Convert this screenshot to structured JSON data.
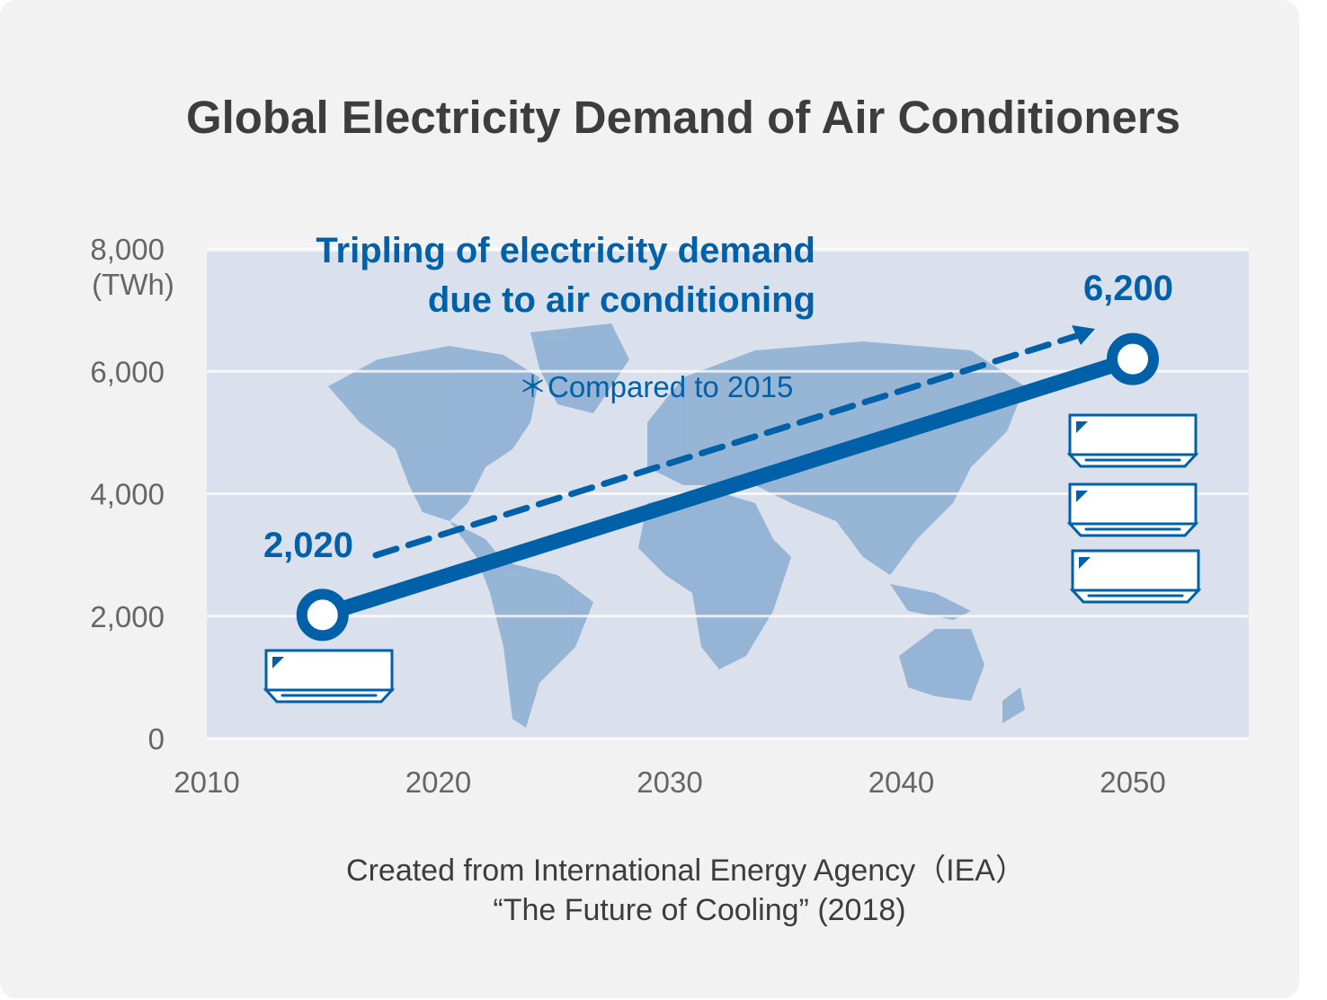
{
  "chart_data": {
    "type": "line",
    "title": "Global Electricity Demand of Air Conditioners",
    "ylabel": "(TWh)",
    "xlim": [
      2010,
      2055
    ],
    "ylim": [
      0,
      8000
    ],
    "x_ticks": [
      "2010",
      "2020",
      "2030",
      "2040",
      "2050"
    ],
    "y_ticks": [
      "0",
      "2,000",
      "4,000",
      "6,000",
      "8,000"
    ],
    "grid": "horizontal",
    "series": [
      {
        "x": [
          2015,
          2050
        ],
        "y": [
          2020,
          6200
        ]
      }
    ],
    "data_labels": [
      "2,020",
      "6,200"
    ],
    "annotation_lines": [
      "Tripling of electricity demand",
      "due to air conditioning"
    ],
    "footnote": "＊Compared to 2015",
    "source_lines": [
      "Created from International Energy Agency（IEA）",
      "“The Future of Cooling” (2018)"
    ],
    "icons": {
      "start": "air-conditioner-icon x1",
      "end": "air-conditioner-icon x3",
      "background": "world-map"
    },
    "colors": {
      "line": "#0060a8",
      "plot_bg": "#dae1ec",
      "map": "#93b2d4",
      "card_bg": "#f2f2f2"
    }
  }
}
